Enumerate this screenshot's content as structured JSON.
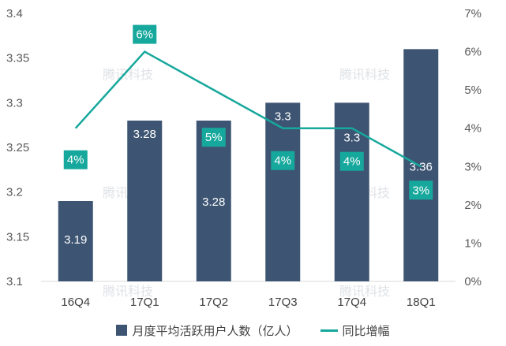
{
  "chart_data": {
    "type": "bar+line",
    "categories": [
      "16Q4",
      "17Q1",
      "17Q2",
      "17Q3",
      "17Q4",
      "18Q1"
    ],
    "series": [
      {
        "name": "月度平均活跃用户人数（亿人）",
        "type": "bar",
        "axis": "left",
        "color": "#3d5573",
        "values": [
          3.19,
          3.28,
          3.28,
          3.3,
          3.3,
          3.36
        ],
        "labels": [
          "3.19",
          "3.28",
          "3.28",
          "3.3",
          "3.3",
          "3.36"
        ]
      },
      {
        "name": "同比增幅",
        "type": "line",
        "axis": "right",
        "color": "#16a89c",
        "values": [
          4,
          6,
          5,
          4,
          4,
          3
        ],
        "labels": [
          "4%",
          "6%",
          "5%",
          "4%",
          "4%",
          "3%"
        ]
      }
    ],
    "y_left": {
      "min": 3.1,
      "max": 3.4,
      "ticks": [
        "3.1",
        "3.15",
        "3.2",
        "3.25",
        "3.3",
        "3.35",
        "3.4"
      ]
    },
    "y_right": {
      "min": 0,
      "max": 7,
      "ticks": [
        "0%",
        "1%",
        "2%",
        "3%",
        "4%",
        "5%",
        "6%",
        "7%"
      ]
    },
    "grid": false,
    "legend": "bottom",
    "watermark": "腾讯科技"
  }
}
